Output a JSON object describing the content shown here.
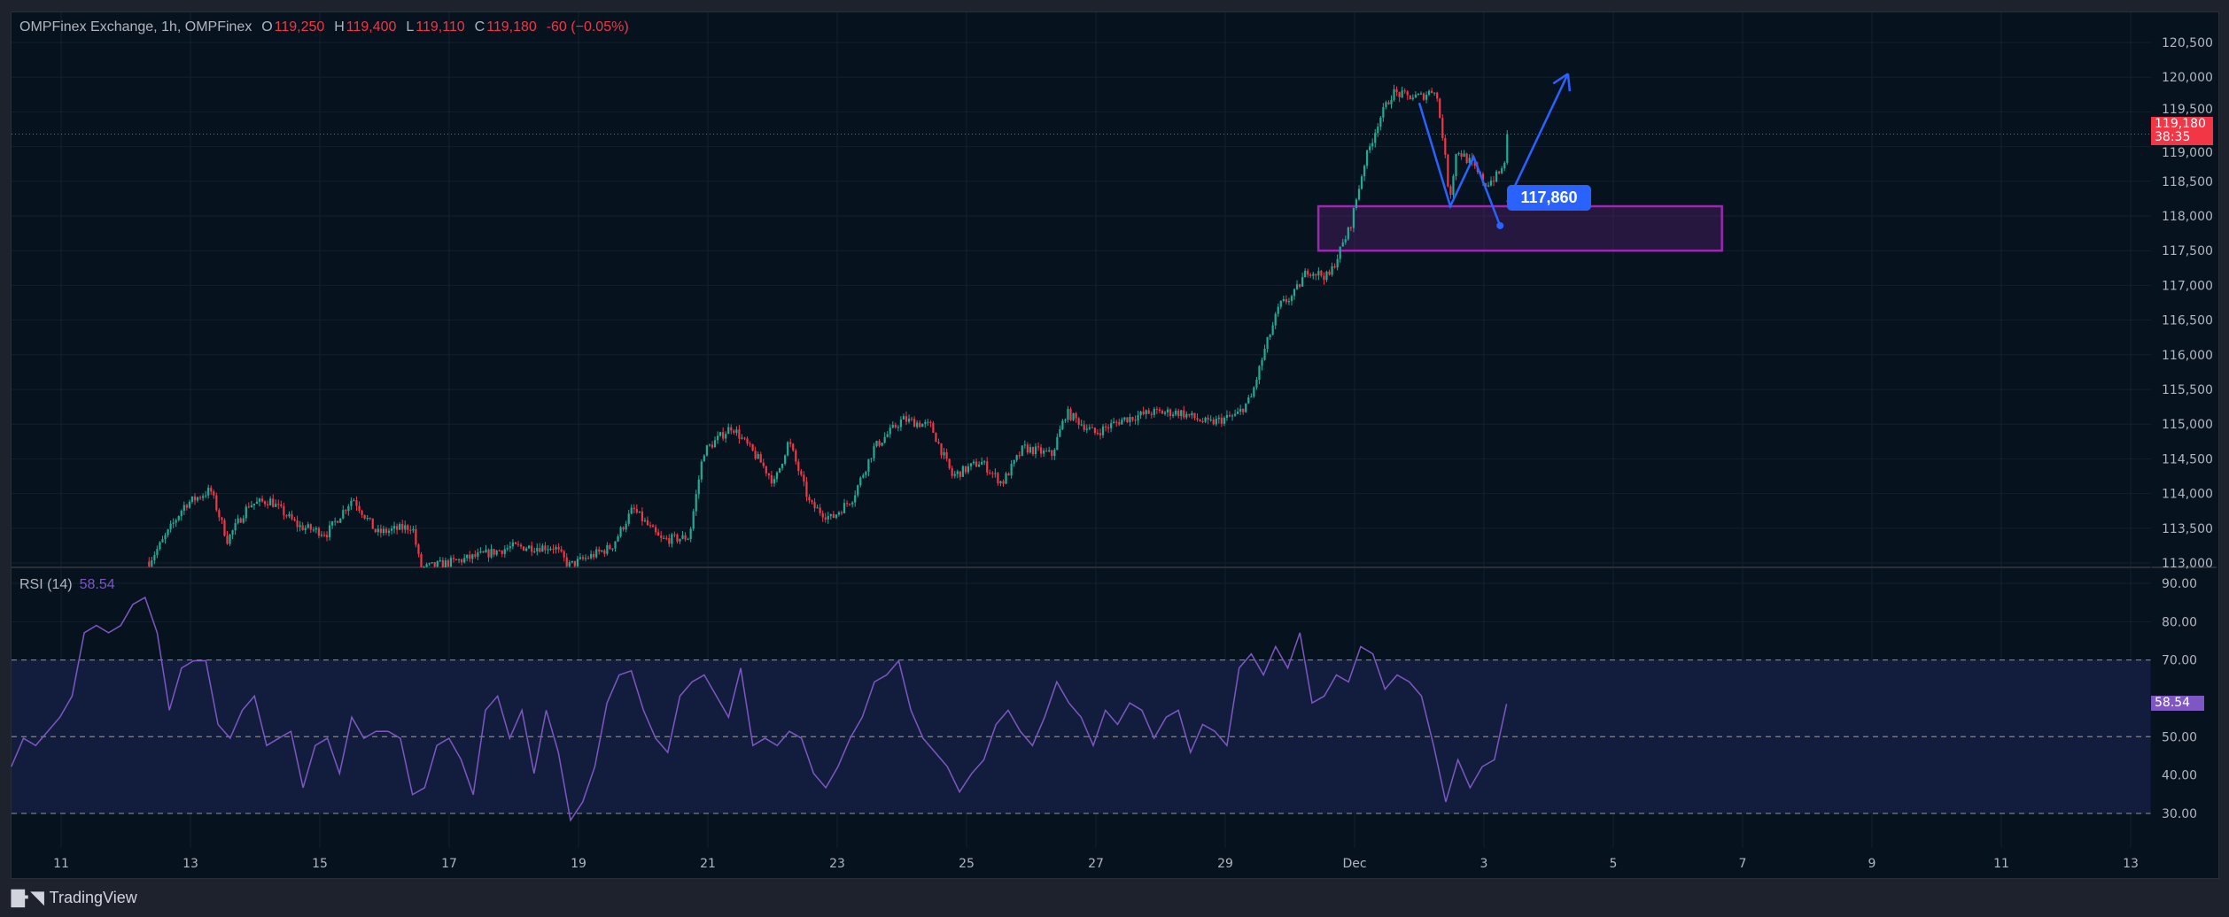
{
  "header": {
    "symbol_label": "OMPFinex Exchange, 1h, OMPFinex",
    "open_prefix": "O",
    "open": "119,250",
    "high_prefix": "H",
    "high": "119,400",
    "low_prefix": "L",
    "low": "119,110",
    "close_prefix": "C",
    "close": "119,180",
    "change": "-60 (−0.05%)"
  },
  "price_tag": {
    "price": "119,180",
    "countdown": "38:35"
  },
  "rsi": {
    "label": "RSI (14)",
    "value": "58.54"
  },
  "annotation": {
    "label": "117,860"
  },
  "branding": {
    "name": "TradingView",
    "logo_text": "TV"
  },
  "colors": {
    "up": "#22ab94",
    "down": "#f23645",
    "rsi": "#7e57c2",
    "zone": "#9c27b0",
    "drawing": "#2962ff",
    "background": "#06131f"
  },
  "chart_data": [
    {
      "type": "candlestick",
      "title": "OMPFinex Exchange, 1h",
      "ylim": [
        113000,
        120500
      ],
      "xlim_day": [
        10.3,
        37.3
      ],
      "y_ticks": [
        "120,500",
        "120,000",
        "119,500",
        "119,000",
        "118,500",
        "118,000",
        "117,500",
        "117,000",
        "116,500",
        "116,000",
        "115,500",
        "115,000",
        "114,500",
        "114,000",
        "113,500",
        "113,000"
      ],
      "y_tick_values": [
        120500,
        120000,
        119500,
        119000,
        118500,
        118000,
        117500,
        117000,
        116500,
        116000,
        115500,
        115000,
        114500,
        114000,
        113500,
        113000
      ],
      "x_ticks": [
        {
          "label": "11",
          "day": 11
        },
        {
          "label": "13",
          "day": 13
        },
        {
          "label": "15",
          "day": 15
        },
        {
          "label": "17",
          "day": 17
        },
        {
          "label": "19",
          "day": 19
        },
        {
          "label": "21",
          "day": 21
        },
        {
          "label": "23",
          "day": 23
        },
        {
          "label": "25",
          "day": 25
        },
        {
          "label": "27",
          "day": 27
        },
        {
          "label": "29",
          "day": 29
        },
        {
          "label": "Dec",
          "day": 31
        },
        {
          "label": "3",
          "day": 33
        },
        {
          "label": "5",
          "day": 35
        },
        {
          "label": "7",
          "day": 37
        },
        {
          "label": "9",
          "day": 39
        },
        {
          "label": "11",
          "day": 41
        },
        {
          "label": "13",
          "day": 43
        }
      ],
      "last_price": 119180,
      "price_path": [
        [
          12.36,
          113020
        ],
        [
          12.58,
          113330
        ],
        [
          12.91,
          113840
        ],
        [
          13.31,
          114050
        ],
        [
          13.57,
          113330
        ],
        [
          13.9,
          113840
        ],
        [
          14.23,
          113900
        ],
        [
          14.67,
          113530
        ],
        [
          15.11,
          113430
        ],
        [
          15.51,
          113940
        ],
        [
          15.88,
          113430
        ],
        [
          16.43,
          113530
        ],
        [
          16.56,
          112920
        ],
        [
          17.09,
          113020
        ],
        [
          17.53,
          113120
        ],
        [
          17.97,
          113230
        ],
        [
          18.63,
          113230
        ],
        [
          18.85,
          112960
        ],
        [
          19.51,
          113230
        ],
        [
          19.84,
          113780
        ],
        [
          20.27,
          113330
        ],
        [
          20.71,
          113370
        ],
        [
          20.93,
          114600
        ],
        [
          21.37,
          114970
        ],
        [
          21.81,
          114460
        ],
        [
          22.03,
          114150
        ],
        [
          22.25,
          114760
        ],
        [
          22.58,
          113840
        ],
        [
          22.91,
          113640
        ],
        [
          23.24,
          113940
        ],
        [
          23.57,
          114660
        ],
        [
          24.01,
          115070
        ],
        [
          24.45,
          114970
        ],
        [
          24.78,
          114250
        ],
        [
          25.22,
          114460
        ],
        [
          25.55,
          114150
        ],
        [
          25.88,
          114660
        ],
        [
          26.32,
          114560
        ],
        [
          26.54,
          115170
        ],
        [
          26.98,
          114870
        ],
        [
          27.42,
          115070
        ],
        [
          27.86,
          115170
        ],
        [
          28.3,
          115170
        ],
        [
          28.74,
          115010
        ],
        [
          29.18,
          115130
        ],
        [
          29.4,
          115380
        ],
        [
          29.62,
          116100
        ],
        [
          29.84,
          116710
        ],
        [
          30.05,
          116850
        ],
        [
          30.27,
          117220
        ],
        [
          30.6,
          117120
        ],
        [
          30.93,
          117840
        ],
        [
          31.15,
          118760
        ],
        [
          31.37,
          119370
        ],
        [
          31.59,
          119780
        ],
        [
          31.81,
          119720
        ],
        [
          32.03,
          119720
        ],
        [
          32.25,
          119840
        ],
        [
          32.36,
          119170
        ],
        [
          32.47,
          118250
        ],
        [
          32.58,
          118960
        ],
        [
          32.8,
          118760
        ],
        [
          33.02,
          118450
        ],
        [
          33.18,
          118560
        ],
        [
          33.31,
          118700
        ],
        [
          33.35,
          119180
        ]
      ],
      "zone": {
        "day_start": 30.44,
        "day_end": 36.68,
        "price_top": 118140,
        "price_bottom": 117500
      },
      "drawing_path": [
        [
          32.0,
          119630
        ],
        [
          32.48,
          118140
        ],
        [
          32.84,
          118850
        ],
        [
          33.25,
          117860
        ]
      ],
      "arrow": {
        "from": [
          33.36,
          118200
        ],
        "to": [
          34.3,
          120050
        ]
      }
    },
    {
      "type": "line",
      "title": "RSI (14)",
      "ylim": [
        25,
        95
      ],
      "y_ticks": [
        "90.00",
        "80.00",
        "70.00",
        "50.00",
        "40.00",
        "30.00"
      ],
      "y_tick_values": [
        90,
        80,
        70,
        50,
        40,
        30
      ],
      "levels": [
        70,
        50,
        30
      ],
      "day_start": 10.23,
      "day_end": 33.35,
      "values": [
        42.2,
        49.6,
        47.7,
        51.4,
        55.1,
        60.6,
        77.1,
        79.0,
        77.1,
        79.0,
        84.5,
        86.3,
        77.1,
        56.9,
        67.9,
        69.8,
        69.8,
        53.2,
        49.6,
        56.9,
        60.6,
        47.7,
        49.6,
        51.4,
        36.7,
        47.7,
        49.6,
        40.4,
        55.1,
        49.6,
        51.4,
        51.4,
        49.6,
        34.9,
        36.7,
        47.7,
        49.6,
        44.0,
        34.9,
        56.9,
        60.6,
        49.6,
        56.9,
        40.4,
        56.9,
        45.9,
        28.2,
        33.0,
        42.2,
        58.8,
        66.1,
        67.2,
        56.9,
        49.6,
        45.9,
        60.6,
        64.3,
        66.1,
        60.6,
        55.1,
        67.9,
        47.7,
        49.6,
        47.7,
        51.4,
        49.6,
        40.4,
        36.7,
        42.2,
        49.6,
        55.1,
        64.3,
        66.1,
        69.8,
        56.9,
        49.6,
        45.9,
        42.2,
        35.6,
        40.4,
        44.0,
        53.2,
        56.9,
        51.4,
        47.7,
        55.1,
        64.3,
        58.8,
        55.1,
        47.7,
        56.9,
        53.2,
        58.8,
        56.9,
        49.6,
        55.1,
        56.9,
        45.9,
        53.2,
        51.4,
        47.7,
        67.9,
        71.6,
        66.1,
        73.5,
        67.9,
        77.1,
        58.8,
        60.6,
        66.1,
        64.3,
        73.5,
        71.6,
        62.4,
        66.1,
        64.3,
        60.6,
        47.7,
        33.0,
        44.0,
        36.7,
        42.2,
        44.0,
        58.54
      ],
      "last_value": 58.54
    }
  ]
}
